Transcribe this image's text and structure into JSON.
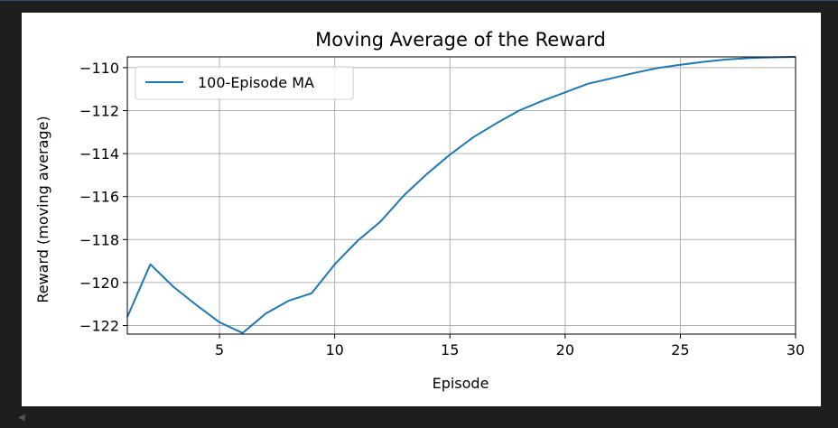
{
  "colors": {
    "background": "#1e1e1e",
    "figure": "#ffffff",
    "line": "#1f77b4",
    "grid": "#b0b0b0"
  },
  "icons": {
    "scroll_left": "triangle-left-icon"
  },
  "chart_data": {
    "type": "line",
    "title": "Moving Average of the Reward",
    "xlabel": "Episode",
    "ylabel": "Reward (moving average)",
    "xlim": [
      1,
      30
    ],
    "ylim": [
      -122.4,
      -109.5
    ],
    "xticks": [
      5,
      10,
      15,
      20,
      25,
      30
    ],
    "yticks": [
      -110,
      -112,
      -114,
      -116,
      -118,
      -120,
      -122
    ],
    "xtick_labels": [
      "5",
      "10",
      "15",
      "20",
      "25",
      "30"
    ],
    "ytick_labels": [
      "−110",
      "−112",
      "−114",
      "−116",
      "−118",
      "−120",
      "−122"
    ],
    "grid": true,
    "legend_position": "top-left",
    "series": [
      {
        "name": "100-Episode MA",
        "color": "#1f77b4",
        "x": [
          1,
          2,
          3,
          4,
          5,
          6,
          7,
          8,
          9,
          10,
          11,
          12,
          13,
          14,
          15,
          16,
          17,
          18,
          19,
          20,
          21,
          22,
          23,
          24,
          25,
          26,
          27,
          28,
          29,
          30
        ],
        "y": [
          -121.6,
          -119.15,
          -120.2,
          -121.05,
          -121.85,
          -122.35,
          -121.45,
          -120.85,
          -120.5,
          -119.15,
          -118.05,
          -117.15,
          -115.95,
          -114.95,
          -114.05,
          -113.25,
          -112.6,
          -112.0,
          -111.55,
          -111.15,
          -110.75,
          -110.5,
          -110.25,
          -110.02,
          -109.87,
          -109.73,
          -109.62,
          -109.55,
          -109.52,
          -109.5
        ]
      }
    ]
  }
}
